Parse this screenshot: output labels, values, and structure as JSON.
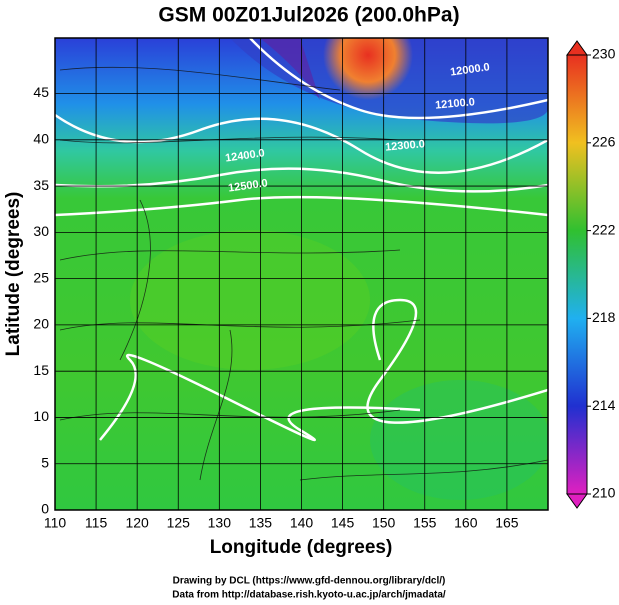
{
  "chart_data": {
    "type": "map",
    "title": "GSM 00Z01Jul2026 (200.0hPa)",
    "xlabel": "Longitude (degrees)",
    "ylabel": "Latitude  (degrees)",
    "xlim": [
      110,
      170
    ],
    "ylim": [
      0,
      51
    ],
    "xticks": [
      110,
      115,
      120,
      125,
      130,
      135,
      140,
      145,
      150,
      155,
      160,
      165
    ],
    "yticks": [
      0,
      5,
      10,
      15,
      20,
      25,
      30,
      35,
      40,
      45
    ],
    "grid": true,
    "colorbar": {
      "lim": [
        210,
        230
      ],
      "ticks": [
        210,
        214,
        218,
        222,
        226,
        230
      ],
      "colors": [
        "#e020c0",
        "#2030d0",
        "#20b0f0",
        "#30c030",
        "#f0c020",
        "#e83020"
      ]
    },
    "contour_labels": [
      "12000.0",
      "12100.0",
      "12300.0",
      "12400.0",
      "12500.0"
    ],
    "credits": [
      "Drawing by DCL (https://www.gfd-dennou.org/library/dcl/)",
      "Data from http://database.rish.kyoto-u.ac.jp/arch/jmadata/"
    ]
  }
}
